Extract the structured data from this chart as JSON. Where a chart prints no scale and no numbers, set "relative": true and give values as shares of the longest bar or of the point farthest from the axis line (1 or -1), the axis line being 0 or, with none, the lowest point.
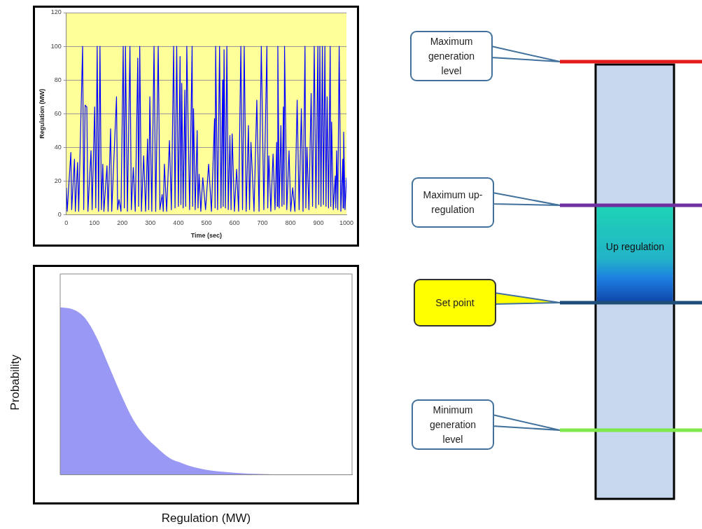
{
  "chart_data": [
    {
      "type": "line",
      "xlabel": "Time (sec)",
      "ylabel": "Regulation (MW)",
      "xlim": [
        0,
        1000
      ],
      "ylim": [
        0,
        120
      ],
      "xticks": [
        0,
        100,
        200,
        300,
        400,
        500,
        600,
        700,
        800,
        900,
        1000
      ],
      "yticks": [
        0,
        20,
        40,
        60,
        80,
        100,
        120
      ],
      "grid": "y",
      "legend": false,
      "marker": "none",
      "series": [
        {
          "color": "#0000ff",
          "x": [
            0,
            3,
            16,
            19,
            29,
            32,
            40,
            44,
            58,
            62,
            67,
            73,
            77,
            88,
            92,
            101,
            105,
            110,
            115,
            120,
            125,
            130,
            134,
            145,
            149,
            158,
            162,
            179,
            183,
            188,
            195,
            203,
            207,
            211,
            218,
            227,
            232,
            239,
            246,
            255,
            258,
            262,
            268,
            276,
            283,
            290,
            294,
            298,
            305,
            313,
            319,
            328,
            334,
            342,
            346,
            350,
            358,
            368,
            375,
            383,
            388,
            394,
            400,
            406,
            409,
            412,
            417,
            423,
            426,
            430,
            440,
            449,
            451,
            454,
            460,
            467,
            470,
            474,
            480,
            487,
            497,
            508,
            518,
            529,
            531,
            533,
            540,
            547,
            552,
            558,
            560,
            563,
            568,
            573,
            578,
            584,
            588,
            592,
            600,
            608,
            615,
            623,
            629,
            635,
            642,
            650,
            654,
            659,
            670,
            680,
            688,
            696,
            705,
            716,
            719,
            723,
            730,
            738,
            745,
            751,
            753,
            755,
            760,
            766,
            770,
            775,
            777,
            779,
            787,
            795,
            801,
            808,
            816,
            824,
            831,
            839,
            845,
            852,
            855,
            859,
            866,
            874,
            879,
            885,
            891,
            898,
            901,
            905,
            909,
            914,
            918,
            923,
            927,
            931,
            936,
            942,
            944,
            947,
            953,
            960,
            962,
            965,
            969,
            974,
            980,
            987,
            988,
            990,
            995,
            1000
          ],
          "values": [
            16,
            2,
            37,
            3,
            33,
            2,
            31,
            2,
            100,
            3,
            65,
            64,
            2,
            38,
            3,
            64,
            4,
            100,
            2,
            100,
            3,
            30,
            2,
            29,
            2,
            51,
            2,
            70,
            3,
            9,
            2,
            100,
            4,
            100,
            2,
            100,
            3,
            28,
            2,
            93,
            5,
            100,
            2,
            35,
            2,
            45,
            3,
            70,
            2,
            100,
            2,
            100,
            3,
            12,
            2,
            30,
            2,
            44,
            3,
            100,
            4,
            100,
            5,
            94,
            6,
            78,
            4,
            74,
            5,
            100,
            3,
            100,
            5,
            63,
            3,
            50,
            4,
            24,
            2,
            22,
            3,
            30,
            2,
            57,
            4,
            100,
            3,
            100,
            4,
            80,
            5,
            98,
            4,
            100,
            3,
            47,
            3,
            48,
            2,
            27,
            2,
            100,
            3,
            100,
            2,
            53,
            3,
            43,
            2,
            68,
            2,
            100,
            3,
            100,
            4,
            35,
            2,
            36,
            3,
            43,
            5,
            100,
            4,
            53,
            5,
            64,
            6,
            100,
            3,
            38,
            2,
            16,
            2,
            68,
            3,
            63,
            2,
            100,
            4,
            40,
            3,
            72,
            5,
            100,
            4,
            100,
            6,
            100,
            5,
            100,
            6,
            100,
            5,
            70,
            4,
            100,
            5,
            55,
            3,
            23,
            4,
            38,
            3,
            100,
            2,
            33,
            4,
            49,
            3,
            22
          ]
        }
      ]
    },
    {
      "type": "area",
      "relative": true,
      "xlabel": "Regulation (MW)",
      "ylabel": "Probability",
      "legend": false,
      "categories": [
        null,
        null,
        null,
        null,
        null,
        null,
        null,
        null,
        null,
        null,
        null,
        null,
        null,
        null,
        null,
        null,
        null,
        null,
        null,
        null,
        null,
        null,
        null,
        null,
        null
      ],
      "series": [
        {
          "color": "#9999f5",
          "values": [
            1,
            0.99,
            0.94,
            0.82,
            0.65,
            0.48,
            0.33,
            0.23,
            0.16,
            0.1,
            0.07,
            0.045,
            0.03,
            0.02,
            0.014,
            0.009,
            0.006,
            0.004,
            0.003,
            0.002,
            0.001,
            0.001,
            0,
            0,
            0
          ]
        }
      ]
    },
    {
      "type": "other",
      "annotations": [
        "Maximum generation level",
        "Maximum up-regulation",
        "Up regulation",
        "Set point",
        "Minimum generation level"
      ]
    }
  ]
}
